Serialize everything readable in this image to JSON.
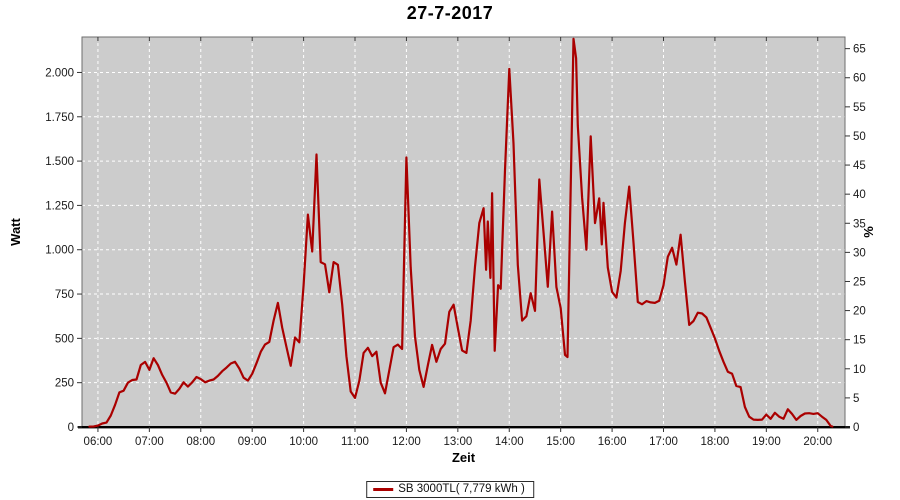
{
  "title": "27-7-2017",
  "legend": {
    "label": "SB 3000TL( 7,779 kWh )"
  },
  "colors": {
    "page_bg": "#ffffff",
    "plot_bg": "#cccccc",
    "grid": "#ffffff",
    "series": "#aa0000",
    "plot_border": "#6e6e6e",
    "axis_line": "#000000",
    "tick": "#333333",
    "text": "#1a1a1a"
  },
  "chart_data": {
    "type": "line",
    "title": "27-7-2017",
    "xlabel": "Zeit",
    "ylabel_left": "Watt",
    "ylabel_right": "%",
    "grid": "white dashed on gray plot background",
    "legend_position": "bottom-center",
    "xlim_hours": [
      5.69,
      20.53
    ],
    "ylim_left": [
      0,
      2200
    ],
    "ylim_right": [
      0,
      67
    ],
    "x_ticks": [
      {
        "h": 6,
        "label": "06:00"
      },
      {
        "h": 7,
        "label": "07:00"
      },
      {
        "h": 8,
        "label": "08:00"
      },
      {
        "h": 9,
        "label": "09:00"
      },
      {
        "h": 10,
        "label": "10:00"
      },
      {
        "h": 11,
        "label": "11:00"
      },
      {
        "h": 12,
        "label": "12:00"
      },
      {
        "h": 13,
        "label": "13:00"
      },
      {
        "h": 14,
        "label": "14:00"
      },
      {
        "h": 15,
        "label": "15:00"
      },
      {
        "h": 16,
        "label": "16:00"
      },
      {
        "h": 17,
        "label": "17:00"
      },
      {
        "h": 18,
        "label": "18:00"
      },
      {
        "h": 19,
        "label": "19:00"
      },
      {
        "h": 20,
        "label": "20:00"
      }
    ],
    "y_left_ticks": [
      {
        "v": 0,
        "label": "0"
      },
      {
        "v": 250,
        "label": "250"
      },
      {
        "v": 500,
        "label": "500"
      },
      {
        "v": 750,
        "label": "750"
      },
      {
        "v": 1000,
        "label": "1.000"
      },
      {
        "v": 1250,
        "label": "1.250"
      },
      {
        "v": 1500,
        "label": "1.500"
      },
      {
        "v": 1750,
        "label": "1.750"
      },
      {
        "v": 2000,
        "label": "2.000"
      }
    ],
    "y_right_ticks": [
      {
        "v": 0,
        "label": "0"
      },
      {
        "v": 5,
        "label": "5"
      },
      {
        "v": 10,
        "label": "10"
      },
      {
        "v": 15,
        "label": "15"
      },
      {
        "v": 20,
        "label": "20"
      },
      {
        "v": 25,
        "label": "25"
      },
      {
        "v": 30,
        "label": "30"
      },
      {
        "v": 35,
        "label": "35"
      },
      {
        "v": 40,
        "label": "40"
      },
      {
        "v": 45,
        "label": "45"
      },
      {
        "v": 50,
        "label": "50"
      },
      {
        "v": 55,
        "label": "55"
      },
      {
        "v": 60,
        "label": "60"
      },
      {
        "v": 65,
        "label": "65"
      }
    ],
    "series": [
      {
        "name": "SB 3000TL( 7,779 kWh )",
        "color": "#aa0000",
        "points": [
          [
            "05:50",
            2
          ],
          [
            "05:55",
            3
          ],
          [
            "06:00",
            8
          ],
          [
            "06:05",
            20
          ],
          [
            "06:10",
            25
          ],
          [
            "06:15",
            65
          ],
          [
            "06:20",
            125
          ],
          [
            "06:25",
            195
          ],
          [
            "06:30",
            205
          ],
          [
            "06:35",
            250
          ],
          [
            "06:40",
            265
          ],
          [
            "06:45",
            268
          ],
          [
            "06:50",
            350
          ],
          [
            "06:55",
            367
          ],
          [
            "07:00",
            322
          ],
          [
            "07:05",
            388
          ],
          [
            "07:10",
            350
          ],
          [
            "07:15",
            294
          ],
          [
            "07:20",
            250
          ],
          [
            "07:25",
            195
          ],
          [
            "07:30",
            188
          ],
          [
            "07:35",
            215
          ],
          [
            "07:40",
            252
          ],
          [
            "07:45",
            228
          ],
          [
            "07:50",
            252
          ],
          [
            "07:55",
            282
          ],
          [
            "08:00",
            270
          ],
          [
            "08:05",
            252
          ],
          [
            "08:10",
            262
          ],
          [
            "08:15",
            268
          ],
          [
            "08:20",
            288
          ],
          [
            "08:25",
            315
          ],
          [
            "08:30",
            335
          ],
          [
            "08:35",
            358
          ],
          [
            "08:40",
            368
          ],
          [
            "08:45",
            330
          ],
          [
            "08:50",
            278
          ],
          [
            "08:55",
            262
          ],
          [
            "09:00",
            300
          ],
          [
            "09:05",
            360
          ],
          [
            "09:10",
            425
          ],
          [
            "09:15",
            465
          ],
          [
            "09:20",
            480
          ],
          [
            "09:25",
            600
          ],
          [
            "09:30",
            700
          ],
          [
            "09:35",
            560
          ],
          [
            "09:40",
            450
          ],
          [
            "09:45",
            345
          ],
          [
            "09:50",
            505
          ],
          [
            "09:55",
            478
          ],
          [
            "10:00",
            800
          ],
          [
            "10:05",
            1198
          ],
          [
            "10:10",
            990
          ],
          [
            "10:15",
            1537
          ],
          [
            "10:20",
            930
          ],
          [
            "10:25",
            918
          ],
          [
            "10:30",
            760
          ],
          [
            "10:35",
            930
          ],
          [
            "10:40",
            915
          ],
          [
            "10:45",
            690
          ],
          [
            "10:50",
            400
          ],
          [
            "10:55",
            200
          ],
          [
            "11:00",
            164
          ],
          [
            "11:05",
            260
          ],
          [
            "11:10",
            418
          ],
          [
            "11:15",
            447
          ],
          [
            "11:20",
            400
          ],
          [
            "11:25",
            425
          ],
          [
            "11:30",
            250
          ],
          [
            "11:35",
            190
          ],
          [
            "11:40",
            320
          ],
          [
            "11:45",
            450
          ],
          [
            "11:50",
            465
          ],
          [
            "11:55",
            440
          ],
          [
            "12:00",
            1520
          ],
          [
            "12:05",
            900
          ],
          [
            "12:10",
            510
          ],
          [
            "12:15",
            322
          ],
          [
            "12:20",
            226
          ],
          [
            "12:25",
            350
          ],
          [
            "12:30",
            463
          ],
          [
            "12:35",
            368
          ],
          [
            "12:40",
            440
          ],
          [
            "12:45",
            470
          ],
          [
            "12:50",
            650
          ],
          [
            "12:55",
            690
          ],
          [
            "13:00",
            560
          ],
          [
            "13:05",
            432
          ],
          [
            "13:10",
            418
          ],
          [
            "13:15",
            600
          ],
          [
            "13:20",
            905
          ],
          [
            "13:25",
            1150
          ],
          [
            "13:30",
            1234
          ],
          [
            "13:33",
            887
          ],
          [
            "13:35",
            1159
          ],
          [
            "13:38",
            841
          ],
          [
            "13:40",
            1319
          ],
          [
            "13:43",
            430
          ],
          [
            "13:47",
            800
          ],
          [
            "13:50",
            780
          ],
          [
            "13:55",
            1450
          ],
          [
            "14:00",
            2020
          ],
          [
            "14:05",
            1600
          ],
          [
            "14:10",
            915
          ],
          [
            "14:15",
            600
          ],
          [
            "14:20",
            625
          ],
          [
            "14:25",
            755
          ],
          [
            "14:30",
            655
          ],
          [
            "14:35",
            1396
          ],
          [
            "14:40",
            1100
          ],
          [
            "14:45",
            791
          ],
          [
            "14:50",
            1215
          ],
          [
            "14:55",
            790
          ],
          [
            "15:00",
            670
          ],
          [
            "15:05",
            407
          ],
          [
            "15:08",
            395
          ],
          [
            "15:10",
            900
          ],
          [
            "15:15",
            2190
          ],
          [
            "15:18",
            2080
          ],
          [
            "15:20",
            1700
          ],
          [
            "15:25",
            1294
          ],
          [
            "15:30",
            1000
          ],
          [
            "15:35",
            1640
          ],
          [
            "15:40",
            1150
          ],
          [
            "15:45",
            1290
          ],
          [
            "15:48",
            1030
          ],
          [
            "15:50",
            1265
          ],
          [
            "15:55",
            900
          ],
          [
            "16:00",
            762
          ],
          [
            "16:05",
            730
          ],
          [
            "16:10",
            880
          ],
          [
            "16:15",
            1150
          ],
          [
            "16:20",
            1356
          ],
          [
            "16:25",
            1040
          ],
          [
            "16:30",
            705
          ],
          [
            "16:35",
            692
          ],
          [
            "16:40",
            710
          ],
          [
            "16:45",
            703
          ],
          [
            "16:50",
            700
          ],
          [
            "16:55",
            712
          ],
          [
            "17:00",
            800
          ],
          [
            "17:05",
            960
          ],
          [
            "17:10",
            1011
          ],
          [
            "17:15",
            916
          ],
          [
            "17:20",
            1085
          ],
          [
            "17:25",
            820
          ],
          [
            "17:30",
            576
          ],
          [
            "17:35",
            598
          ],
          [
            "17:40",
            645
          ],
          [
            "17:45",
            640
          ],
          [
            "17:50",
            618
          ],
          [
            "17:55",
            560
          ],
          [
            "18:00",
            500
          ],
          [
            "18:05",
            430
          ],
          [
            "18:10",
            368
          ],
          [
            "18:15",
            312
          ],
          [
            "18:20",
            300
          ],
          [
            "18:25",
            232
          ],
          [
            "18:30",
            225
          ],
          [
            "18:35",
            113
          ],
          [
            "18:40",
            58
          ],
          [
            "18:45",
            42
          ],
          [
            "18:50",
            40
          ],
          [
            "18:55",
            42
          ],
          [
            "19:00",
            70
          ],
          [
            "19:05",
            46
          ],
          [
            "19:10",
            80
          ],
          [
            "19:15",
            58
          ],
          [
            "19:20",
            46
          ],
          [
            "19:25",
            100
          ],
          [
            "19:30",
            74
          ],
          [
            "19:35",
            40
          ],
          [
            "19:40",
            62
          ],
          [
            "19:45",
            76
          ],
          [
            "19:50",
            78
          ],
          [
            "19:55",
            74
          ],
          [
            "20:00",
            78
          ],
          [
            "20:05",
            58
          ],
          [
            "20:10",
            40
          ],
          [
            "20:15",
            6
          ],
          [
            "20:17",
            3
          ]
        ]
      }
    ]
  }
}
